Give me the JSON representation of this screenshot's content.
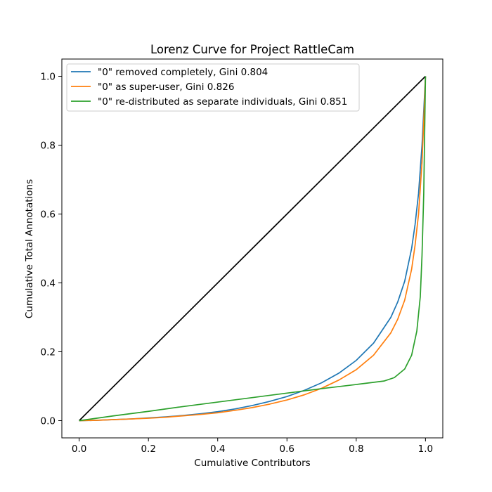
{
  "chart_data": {
    "type": "line",
    "title": "Lorenz Curve for Project RattleCam",
    "xlabel": "Cumulative Contributors",
    "ylabel": "Cumulative Total Annotations",
    "xlim": [
      -0.05,
      1.05
    ],
    "ylim": [
      -0.05,
      1.05
    ],
    "xticks": [
      "0.0",
      "0.2",
      "0.4",
      "0.6",
      "0.8",
      "1.0"
    ],
    "yticks": [
      "0.0",
      "0.2",
      "0.4",
      "0.6",
      "0.8",
      "1.0"
    ],
    "grid": false,
    "legend_position": "upper-left",
    "equality_line": {
      "x": [
        0.0,
        1.0
      ],
      "y": [
        0.0,
        1.0
      ],
      "color": "#000000"
    },
    "series": [
      {
        "name": "\"0\" removed completely, Gini 0.804",
        "color": "#1f77b4",
        "x": [
          0.0,
          0.05,
          0.1,
          0.15,
          0.2,
          0.25,
          0.3,
          0.35,
          0.4,
          0.45,
          0.5,
          0.55,
          0.6,
          0.65,
          0.7,
          0.75,
          0.8,
          0.85,
          0.9,
          0.92,
          0.94,
          0.96,
          0.97,
          0.98,
          0.99,
          0.995,
          1.0
        ],
        "y": [
          0.0,
          0.001,
          0.003,
          0.005,
          0.008,
          0.011,
          0.015,
          0.02,
          0.026,
          0.034,
          0.044,
          0.056,
          0.07,
          0.088,
          0.11,
          0.138,
          0.175,
          0.225,
          0.3,
          0.345,
          0.405,
          0.5,
          0.57,
          0.66,
          0.8,
          0.9,
          1.0
        ]
      },
      {
        "name": "\"0\" as super-user, Gini 0.826",
        "color": "#ff7f0e",
        "x": [
          0.0,
          0.05,
          0.1,
          0.15,
          0.2,
          0.25,
          0.3,
          0.35,
          0.4,
          0.45,
          0.5,
          0.55,
          0.6,
          0.65,
          0.7,
          0.75,
          0.8,
          0.85,
          0.9,
          0.92,
          0.94,
          0.96,
          0.97,
          0.98,
          0.99,
          0.995,
          1.0
        ],
        "y": [
          0.0,
          0.001,
          0.003,
          0.005,
          0.007,
          0.01,
          0.014,
          0.018,
          0.023,
          0.03,
          0.038,
          0.048,
          0.06,
          0.075,
          0.094,
          0.118,
          0.148,
          0.19,
          0.255,
          0.295,
          0.35,
          0.44,
          0.51,
          0.6,
          0.75,
          0.87,
          1.0
        ]
      },
      {
        "name": "\"0\" re-distributed as separate individuals, Gini 0.851",
        "color": "#2ca02c",
        "x": [
          0.0,
          0.1,
          0.2,
          0.3,
          0.4,
          0.5,
          0.6,
          0.7,
          0.8,
          0.88,
          0.91,
          0.94,
          0.96,
          0.975,
          0.985,
          0.99,
          0.995,
          1.0
        ],
        "y": [
          0.0,
          0.014,
          0.027,
          0.041,
          0.054,
          0.067,
          0.08,
          0.093,
          0.105,
          0.115,
          0.125,
          0.15,
          0.19,
          0.26,
          0.36,
          0.48,
          0.66,
          1.0
        ]
      }
    ]
  }
}
